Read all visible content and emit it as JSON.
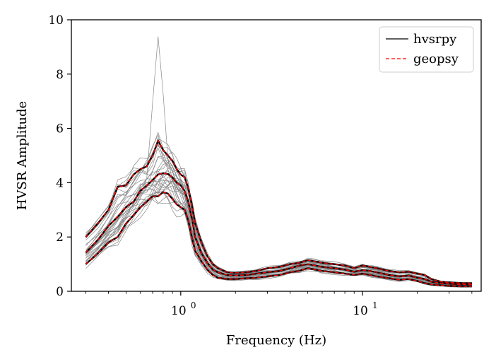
{
  "chart_data": {
    "type": "line",
    "title": "",
    "xlabel": "Frequency (Hz)",
    "ylabel": "HVSR Amplitude",
    "xscale": "log",
    "xlim": [
      0.25,
      45
    ],
    "ylim": [
      0,
      10
    ],
    "yticks": [
      0,
      2,
      4,
      6,
      8,
      10
    ],
    "xticks": [
      {
        "value": 1,
        "label": "10",
        "exp": "0"
      },
      {
        "value": 10,
        "label": "10",
        "exp": "1"
      }
    ],
    "grid": false,
    "legend": {
      "placement": "top-right",
      "entries": [
        {
          "name": "hvsrpy",
          "color": "#000000",
          "style": "solid"
        },
        {
          "name": "geopsy",
          "color": "#ff0000",
          "style": "dashed"
        }
      ]
    },
    "x": [
      0.3,
      0.35,
      0.4,
      0.45,
      0.5,
      0.55,
      0.6,
      0.65,
      0.7,
      0.75,
      0.8,
      0.85,
      0.9,
      0.95,
      1.0,
      1.05,
      1.1,
      1.15,
      1.2,
      1.3,
      1.4,
      1.5,
      1.6,
      1.8,
      2.0,
      2.3,
      2.6,
      3.0,
      3.5,
      4.0,
      4.5,
      5.0,
      5.5,
      6.0,
      7.0,
      8.0,
      9.0,
      10.0,
      11.0,
      12.0,
      14.0,
      16.0,
      18.0,
      20.0,
      22.0,
      24.0,
      27.0,
      30.0,
      35.0,
      40.0
    ],
    "series": [
      {
        "name": "hvsrpy",
        "role": "median",
        "values": [
          1.42,
          1.9,
          2.4,
          2.75,
          3.1,
          3.3,
          3.7,
          3.9,
          4.1,
          4.3,
          4.35,
          4.32,
          4.2,
          4.0,
          3.9,
          3.7,
          3.3,
          2.7,
          2.0,
          1.4,
          1.05,
          0.8,
          0.7,
          0.6,
          0.58,
          0.6,
          0.65,
          0.7,
          0.75,
          0.85,
          0.95,
          1.0,
          0.95,
          0.9,
          0.85,
          0.8,
          0.72,
          0.78,
          0.75,
          0.7,
          0.6,
          0.55,
          0.58,
          0.5,
          0.45,
          0.35,
          0.3,
          0.28,
          0.25,
          0.25
        ]
      },
      {
        "name": "hvsrpy",
        "role": "upper",
        "values": [
          2.0,
          2.5,
          3.0,
          3.85,
          3.9,
          4.3,
          4.5,
          4.6,
          5.0,
          5.55,
          5.2,
          5.0,
          4.8,
          4.5,
          4.3,
          4.2,
          3.8,
          3.2,
          2.5,
          1.8,
          1.3,
          1.0,
          0.85,
          0.7,
          0.68,
          0.7,
          0.75,
          0.85,
          0.9,
          1.0,
          1.05,
          1.15,
          1.1,
          1.05,
          1.0,
          0.95,
          0.85,
          0.95,
          0.9,
          0.85,
          0.75,
          0.7,
          0.72,
          0.65,
          0.6,
          0.45,
          0.35,
          0.33,
          0.3,
          0.3
        ]
      },
      {
        "name": "hvsrpy",
        "role": "lower",
        "values": [
          1.0,
          1.4,
          1.8,
          2.0,
          2.5,
          2.8,
          3.1,
          3.3,
          3.5,
          3.5,
          3.65,
          3.6,
          3.4,
          3.2,
          3.1,
          3.0,
          2.6,
          2.0,
          1.5,
          1.1,
          0.8,
          0.6,
          0.5,
          0.45,
          0.45,
          0.48,
          0.5,
          0.55,
          0.6,
          0.7,
          0.75,
          0.85,
          0.8,
          0.75,
          0.7,
          0.65,
          0.6,
          0.65,
          0.6,
          0.55,
          0.48,
          0.42,
          0.45,
          0.38,
          0.3,
          0.25,
          0.22,
          0.2,
          0.18,
          0.18
        ]
      },
      {
        "name": "geopsy",
        "role": "median",
        "values": [
          1.42,
          1.9,
          2.4,
          2.75,
          3.1,
          3.3,
          3.7,
          3.9,
          4.1,
          4.3,
          4.35,
          4.32,
          4.2,
          4.0,
          3.9,
          3.7,
          3.3,
          2.7,
          2.0,
          1.4,
          1.05,
          0.8,
          0.7,
          0.6,
          0.58,
          0.6,
          0.65,
          0.7,
          0.75,
          0.85,
          0.95,
          1.0,
          0.95,
          0.9,
          0.85,
          0.8,
          0.72,
          0.78,
          0.75,
          0.7,
          0.6,
          0.55,
          0.58,
          0.5,
          0.45,
          0.35,
          0.3,
          0.28,
          0.25,
          0.25
        ]
      },
      {
        "name": "geopsy",
        "role": "upper",
        "values": [
          2.0,
          2.5,
          3.0,
          3.85,
          3.9,
          4.3,
          4.5,
          4.6,
          5.0,
          5.55,
          5.2,
          5.0,
          4.8,
          4.5,
          4.3,
          4.2,
          3.8,
          3.2,
          2.5,
          1.8,
          1.3,
          1.0,
          0.85,
          0.7,
          0.68,
          0.7,
          0.75,
          0.85,
          0.9,
          1.0,
          1.05,
          1.15,
          1.1,
          1.05,
          1.0,
          0.95,
          0.85,
          0.95,
          0.9,
          0.85,
          0.75,
          0.7,
          0.72,
          0.65,
          0.6,
          0.45,
          0.35,
          0.33,
          0.3,
          0.3
        ]
      },
      {
        "name": "geopsy",
        "role": "lower",
        "values": [
          1.0,
          1.4,
          1.8,
          2.0,
          2.5,
          2.8,
          3.1,
          3.3,
          3.5,
          3.5,
          3.65,
          3.6,
          3.4,
          3.2,
          3.1,
          3.0,
          2.6,
          2.0,
          1.5,
          1.1,
          0.8,
          0.6,
          0.5,
          0.45,
          0.45,
          0.48,
          0.5,
          0.55,
          0.6,
          0.7,
          0.75,
          0.85,
          0.8,
          0.75,
          0.7,
          0.65,
          0.6,
          0.65,
          0.6,
          0.55,
          0.48,
          0.42,
          0.45,
          0.38,
          0.3,
          0.25,
          0.22,
          0.2,
          0.18,
          0.18
        ]
      }
    ],
    "individual_windows": {
      "color": "#888888",
      "count": 30,
      "peak_max": 9.6,
      "peak_freq": 0.75
    }
  }
}
